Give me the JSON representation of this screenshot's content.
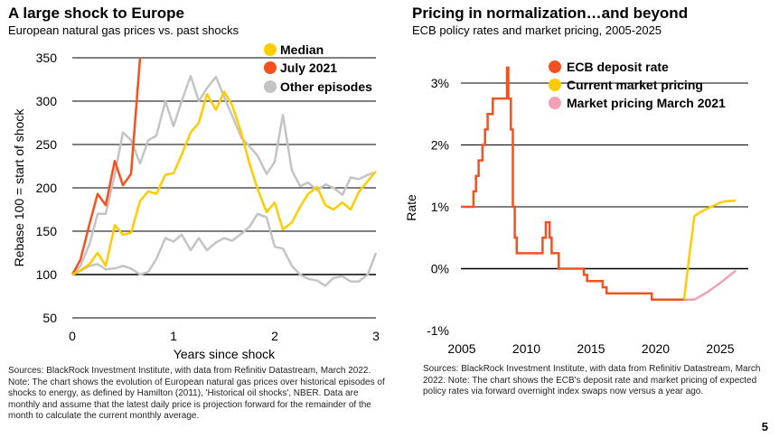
{
  "left": {
    "title": "A large shock to Europe",
    "subtitle": "European natural gas prices vs. past shocks",
    "source": "Sources: BlackRock Investment Institute, with data from Refinitiv Datastream, March 2022. Note: The chart shows the evolution of European natural gas prices over historical episodes of shocks to energy, as defined by Hamilton (2011), 'Historical oil shocks', NBER. Data are monthly and assume that the latest daily price is projection forward for the remainder of the month to calculate the current monthly average."
  },
  "right": {
    "title": "Pricing in normalization…and beyond",
    "subtitle": "ECB policy rates and market pricing, 2005-2025",
    "source": "Sources: BlackRock Investment Institute, with data from Refinitiv Datastream, March 2022. Note: The chart shows the ECB's deposit rate and market pricing of expected policy rates via forward overnight index swaps now versus a year ago."
  },
  "page_number": "5",
  "chart_data": [
    {
      "type": "line",
      "xlabel": "Years since shock",
      "ylabel": "Rebase 100 = start of shock",
      "xlim": [
        0,
        3
      ],
      "ylim": [
        50,
        350
      ],
      "xticks": [
        "0",
        "1",
        "2",
        "3"
      ],
      "yticks": [
        "50",
        "100",
        "150",
        "200",
        "250",
        "300",
        "350"
      ],
      "legend_position": "top-right",
      "series": [
        {
          "name": "Median",
          "color": "#FFCC00",
          "x": [
            0,
            0.08,
            0.17,
            0.25,
            0.33,
            0.42,
            0.5,
            0.58,
            0.67,
            0.75,
            0.83,
            0.92,
            1.0,
            1.08,
            1.17,
            1.25,
            1.33,
            1.42,
            1.5,
            1.58,
            1.67,
            1.75,
            1.83,
            1.92,
            2.0,
            2.08,
            2.17,
            2.25,
            2.33,
            2.42,
            2.5,
            2.58,
            2.67,
            2.75,
            2.83,
            2.92,
            3.0
          ],
          "values": [
            100,
            105,
            112,
            125,
            110,
            157,
            146,
            148,
            185,
            196,
            193,
            215,
            217,
            238,
            264,
            275,
            308,
            290,
            311,
            295,
            264,
            228,
            199,
            172,
            183,
            152,
            160,
            178,
            193,
            201,
            180,
            175,
            183,
            175,
            195,
            208,
            219
          ]
        },
        {
          "name": "July 2021",
          "color": "#F4511E",
          "x": [
            0,
            0.08,
            0.17,
            0.25,
            0.33,
            0.42,
            0.5,
            0.58,
            0.67
          ],
          "values": [
            100,
            117,
            158,
            193,
            180,
            231,
            203,
            216,
            350
          ]
        },
        {
          "name": "Other episodes",
          "color": "#C4C4C4",
          "lines": [
            {
              "x": [
                0,
                0.08,
                0.17,
                0.25,
                0.33,
                0.42,
                0.5,
                0.58,
                0.67,
                0.75,
                0.83,
                0.92,
                1.0,
                1.08,
                1.17,
                1.25,
                1.33,
                1.42,
                1.5,
                1.58,
                1.67,
                1.75,
                1.83,
                1.92,
                2.0,
                2.08,
                2.17,
                2.25,
                2.33,
                2.42,
                2.5,
                2.58,
                2.67,
                2.75,
                2.83,
                2.92,
                3.0
              ],
              "values": [
                100,
                110,
                135,
                170,
                170,
                215,
                264,
                255,
                228,
                255,
                260,
                300,
                271,
                300,
                329,
                300,
                315,
                328,
                305,
                283,
                258,
                248,
                237,
                216,
                230,
                284,
                220,
                202,
                206,
                197,
                204,
                200,
                192,
                212,
                210,
                215,
                218
              ]
            },
            {
              "x": [
                0,
                0.08,
                0.17,
                0.25,
                0.33,
                0.42,
                0.5,
                0.58,
                0.67,
                0.75,
                0.83,
                0.92,
                1.0,
                1.08,
                1.17,
                1.25,
                1.33,
                1.42,
                1.5,
                1.58,
                1.67,
                1.75,
                1.83,
                1.92,
                2.0,
                2.08,
                2.17,
                2.25,
                2.33,
                2.42,
                2.5,
                2.58,
                2.67,
                2.75,
                2.83,
                2.92,
                3.0
              ],
              "values": [
                100,
                104,
                110,
                112,
                106,
                107,
                110,
                107,
                100,
                103,
                118,
                142,
                138,
                146,
                128,
                142,
                128,
                137,
                142,
                139,
                147,
                155,
                170,
                166,
                132,
                130,
                110,
                100,
                95,
                93,
                87,
                96,
                98,
                92,
                92,
                100,
                125
              ]
            }
          ]
        }
      ]
    },
    {
      "type": "line",
      "xlabel": "",
      "ylabel": "Rate",
      "xlim": [
        2005,
        2026.5
      ],
      "ylim": [
        -1,
        3.5
      ],
      "xticks": [
        "2005",
        "2010",
        "2015",
        "2020",
        "2025"
      ],
      "yticks": [
        "3%",
        "2%",
        "1%",
        "0%",
        "-1%"
      ],
      "legend_position": "top-right",
      "series": [
        {
          "name": "ECB deposit rate",
          "color": "#F4511E",
          "step": true,
          "x": [
            2005.0,
            2005.9,
            2006.1,
            2006.3,
            2006.6,
            2006.8,
            2007.0,
            2007.4,
            2008.5,
            2008.6,
            2008.8,
            2008.95,
            2009.1,
            2009.25,
            2011.25,
            2011.5,
            2011.8,
            2011.95,
            2012.5,
            2014.45,
            2014.7,
            2015.9,
            2016.2,
            2019.7,
            2022.5
          ],
          "values": [
            1.0,
            1.25,
            1.5,
            1.75,
            2.0,
            2.25,
            2.5,
            2.75,
            3.25,
            2.75,
            2.25,
            1.0,
            0.5,
            0.25,
            0.5,
            0.75,
            0.5,
            0.25,
            0.0,
            -0.1,
            -0.2,
            -0.3,
            -0.4,
            -0.5,
            -0.5
          ]
        },
        {
          "name": "Current market pricing",
          "color": "#FFCC00",
          "x": [
            2022.2,
            2022.6,
            2023.0,
            2023.5,
            2024.0,
            2024.5,
            2025.0,
            2025.5,
            2026.2
          ],
          "values": [
            -0.5,
            0.2,
            0.85,
            0.92,
            0.97,
            1.02,
            1.07,
            1.09,
            1.1
          ]
        },
        {
          "name": "Market pricing March 2021",
          "color": "#F4A0B4",
          "x": [
            2022.2,
            2023.0,
            2024.0,
            2025.0,
            2026.2
          ],
          "values": [
            -0.5,
            -0.5,
            -0.38,
            -0.23,
            -0.03
          ]
        }
      ]
    }
  ]
}
